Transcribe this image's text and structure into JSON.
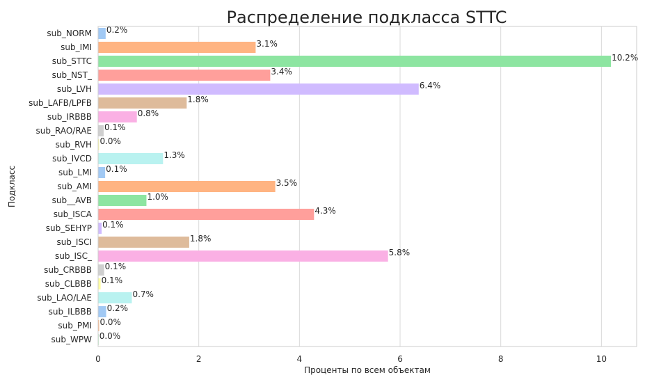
{
  "chart_data": {
    "type": "bar",
    "orientation": "horizontal",
    "title": "Распределение подкласса STTC",
    "xlabel": "Проценты по всем объектам",
    "ylabel": "Подкласс",
    "xlim": [
      0,
      10.7
    ],
    "xticks": [
      0,
      2,
      4,
      6,
      8,
      10
    ],
    "grid": true,
    "categories": [
      "sub_NORM",
      "sub_IMI",
      "sub_STTC",
      "sub_NST_",
      "sub_LVH",
      "sub_LAFB/LPFB",
      "sub_IRBBB",
      "sub_RAO/RAE",
      "sub_RVH",
      "sub_IVCD",
      "sub_LMI",
      "sub_AMI",
      "sub__AVB",
      "sub_ISCA",
      "sub_SEHYP",
      "sub_ISCI",
      "sub_ISC_",
      "sub_CRBBB",
      "sub_CLBBB",
      "sub_LAO/LAE",
      "sub_ILBBB",
      "sub_PMI",
      "sub_WPW"
    ],
    "values": [
      0.15,
      3.13,
      10.19,
      3.42,
      6.37,
      1.76,
      0.77,
      0.11,
      0.02,
      1.29,
      0.14,
      3.52,
      0.96,
      4.29,
      0.07,
      1.81,
      5.76,
      0.12,
      0.05,
      0.67,
      0.16,
      0.02,
      0.01
    ],
    "value_labels": [
      "0.2%",
      "3.1%",
      "10.2%",
      "3.4%",
      "6.4%",
      "1.8%",
      "0.8%",
      "0.1%",
      "0.0%",
      "1.3%",
      "0.1%",
      "3.5%",
      "1.0%",
      "4.3%",
      "0.1%",
      "1.8%",
      "5.8%",
      "0.1%",
      "0.1%",
      "0.7%",
      "0.2%",
      "0.0%",
      "0.0%"
    ],
    "colors": [
      "#a1c9f4",
      "#ffb482",
      "#8de5a1",
      "#ff9f9b",
      "#d0bbff",
      "#debb9b",
      "#fab0e4",
      "#cfcfcf",
      "#fffea3",
      "#b9f2f0"
    ]
  }
}
